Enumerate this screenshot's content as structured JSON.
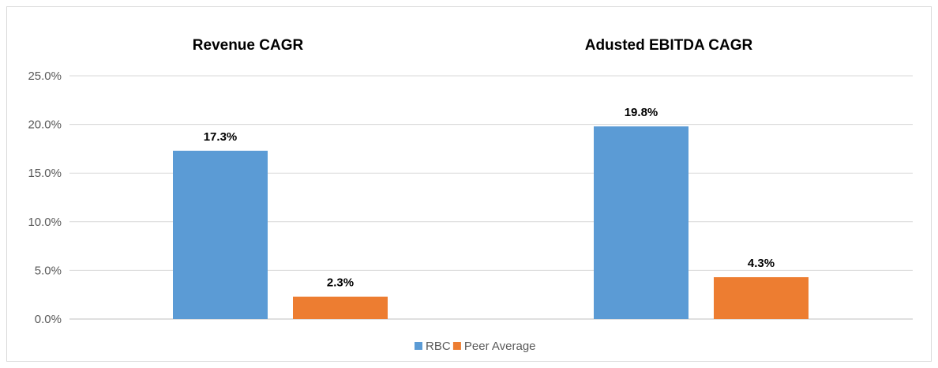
{
  "chart_data": {
    "type": "bar",
    "categories": [
      "Revenue CAGR",
      "Adusted EBITDA CAGR"
    ],
    "series": [
      {
        "name": "RBC",
        "values": [
          17.3,
          19.8
        ],
        "labels": [
          "17.3%",
          "19.8%"
        ],
        "color": "#5b9bd5"
      },
      {
        "name": "Peer Average",
        "values": [
          2.3,
          4.3
        ],
        "labels": [
          "2.3%",
          "4.3%"
        ],
        "color": "#ed7d31"
      }
    ],
    "ylim": [
      0,
      25
    ],
    "yticks": [
      0,
      5,
      10,
      15,
      20,
      25
    ],
    "ytick_labels": [
      "0.0%",
      "5.0%",
      "10.0%",
      "15.0%",
      "20.0%",
      "25.0%"
    ],
    "grid": true,
    "legend_position": "bottom"
  }
}
